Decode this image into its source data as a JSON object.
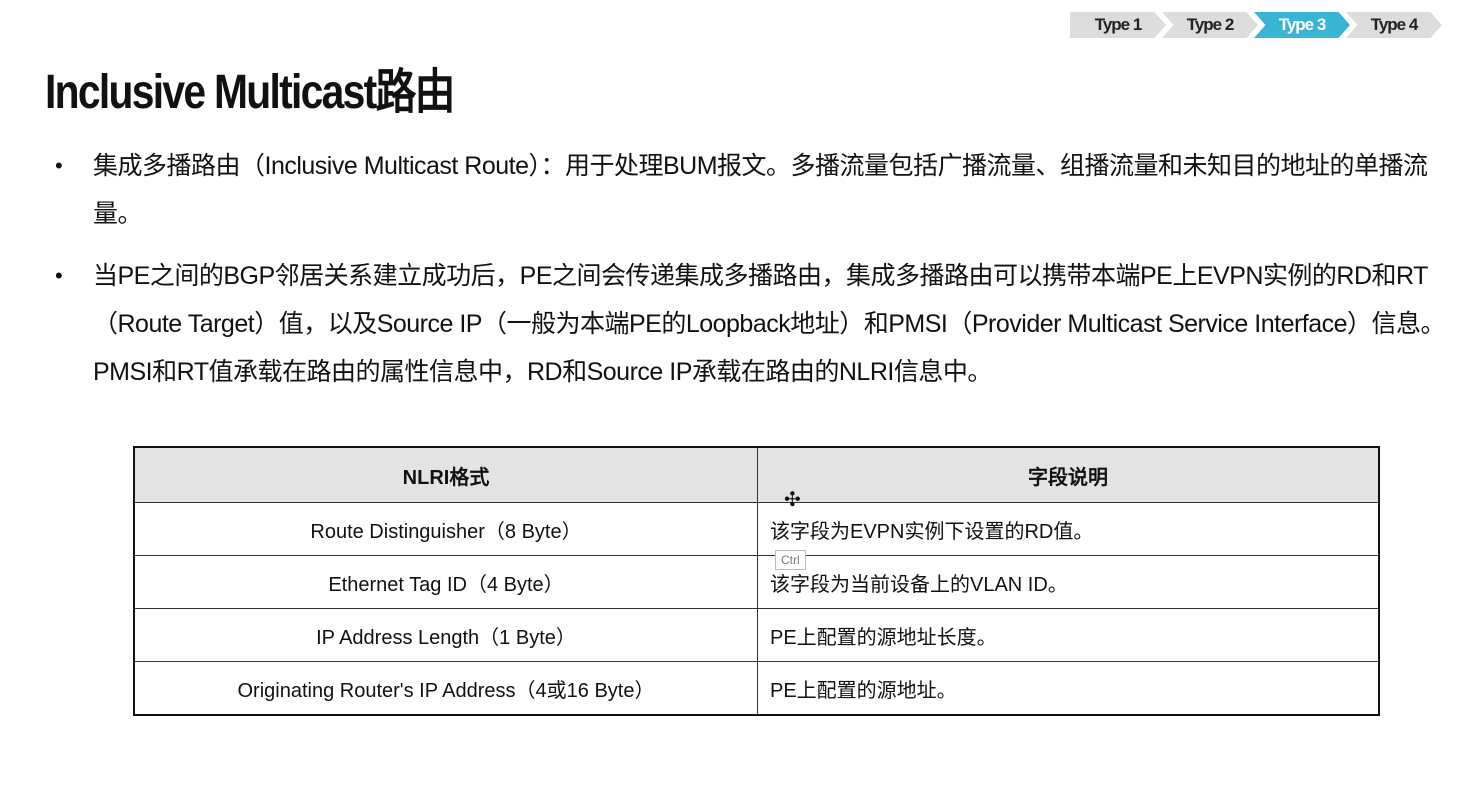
{
  "nav": {
    "steps": [
      "Type 1",
      "Type 2",
      "Type 3",
      "Type 4"
    ],
    "active": "Type 3",
    "active_color": "#3ab4d4"
  },
  "title": "Inclusive Multicast路由",
  "bullets": [
    "集成多播路由（Inclusive Multicast Route）：用于处理BUM报文。多播流量包括广播流量、组播流量和未知目的地址的单播流量。",
    "当PE之间的BGP邻居关系建立成功后，PE之间会传递集成多播路由，集成多播路由可以携带本端PE上EVPN实例的RD和RT（Route Target）值，以及Source IP（一般为本端PE的Loopback地址）和PMSI（Provider Multicast Service Interface）信息。PMSI和RT值承载在路由的属性信息中，RD和Source IP承载在路由的NLRI信息中。"
  ],
  "table": {
    "headers": [
      "NLRI格式",
      "字段说明"
    ],
    "rows": [
      [
        "Route Distinguisher（8 Byte）",
        "该字段为EVPN实例下设置的RD值。"
      ],
      [
        "Ethernet Tag ID（4 Byte）",
        "该字段为当前设备上的VLAN ID。"
      ],
      [
        "IP Address Length（1 Byte）",
        "PE上配置的源地址长度。"
      ],
      [
        "Originating Router's IP Address（4或16 Byte）",
        "PE上配置的源地址。"
      ]
    ]
  },
  "tooltip": "Ctrl"
}
